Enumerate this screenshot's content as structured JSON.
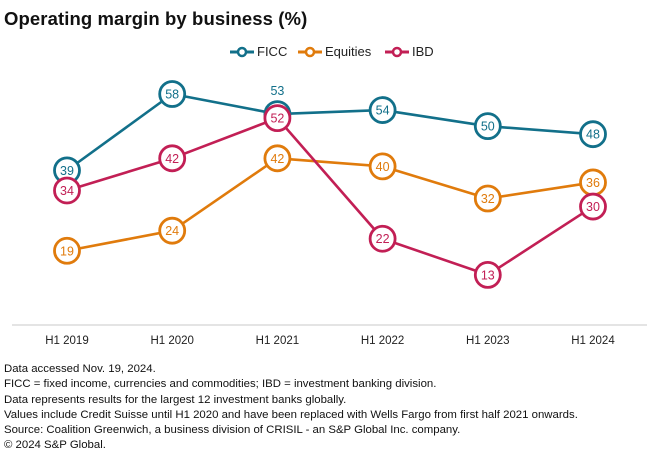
{
  "title": "Operating margin by business (%)",
  "legend": [
    {
      "name": "FICC",
      "color": "#12708a"
    },
    {
      "name": "Equities",
      "color": "#e07b0c"
    },
    {
      "name": "IBD",
      "color": "#c21f55"
    }
  ],
  "notes": [
    "Data accessed Nov. 19, 2024.",
    "FICC = fixed income, currencies and commodities; IBD = investment banking division.",
    "Data represents results for the largest 12 investment banks globally.",
    "Values include Credit Suisse until H1 2020 and have been replaced with Wells Fargo from first half 2021 onwards.",
    "Source: Coalition Greenwich, a business division of CRISIL - an S&P Global Inc. company.",
    "© 2024 S&P Global."
  ],
  "chart_data": {
    "type": "line",
    "title": "Operating margin by business (%)",
    "xlabel": "",
    "ylabel": "",
    "categories": [
      "H1 2019",
      "H1 2020",
      "H1 2021",
      "H1 2022",
      "H1 2023",
      "H1 2024"
    ],
    "series": [
      {
        "name": "FICC",
        "color": "#12708a",
        "values": [
          39,
          58,
          53,
          54,
          50,
          48
        ]
      },
      {
        "name": "Equities",
        "color": "#e07b0c",
        "values": [
          19,
          24,
          42,
          40,
          32,
          36
        ]
      },
      {
        "name": "IBD",
        "color": "#c21f55",
        "values": [
          34,
          42,
          52,
          22,
          13,
          30
        ]
      }
    ],
    "ylim": [
      0,
      70
    ],
    "grid": false,
    "legend_position": "top-center",
    "data_labels": true
  }
}
